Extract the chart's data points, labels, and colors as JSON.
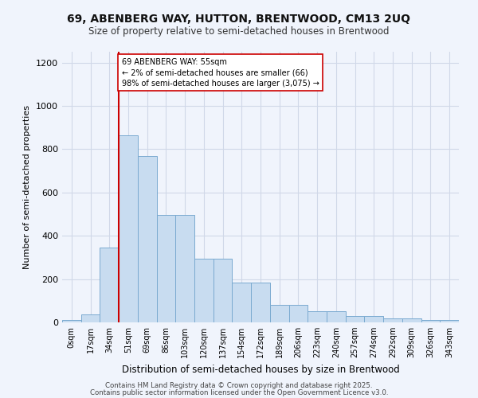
{
  "title": "69, ABENBERG WAY, HUTTON, BRENTWOOD, CM13 2UQ",
  "subtitle": "Size of property relative to semi-detached houses in Brentwood",
  "xlabel": "Distribution of semi-detached houses by size in Brentwood",
  "ylabel": "Number of semi-detached properties",
  "bar_labels": [
    "0sqm",
    "17sqm",
    "34sqm",
    "51sqm",
    "69sqm",
    "86sqm",
    "103sqm",
    "120sqm",
    "137sqm",
    "154sqm",
    "172sqm",
    "189sqm",
    "206sqm",
    "223sqm",
    "240sqm",
    "257sqm",
    "274sqm",
    "292sqm",
    "309sqm",
    "326sqm",
    "343sqm"
  ],
  "bar_values": [
    10,
    35,
    345,
    865,
    770,
    495,
    495,
    295,
    295,
    185,
    185,
    80,
    80,
    50,
    50,
    30,
    30,
    20,
    20,
    10,
    10
  ],
  "bar_color": "#c8dcf0",
  "bar_edge_color": "#7aaad0",
  "grid_color": "#d0d8e8",
  "background_color": "#f0f4fc",
  "vline_color": "#cc0000",
  "vline_x_index": 3,
  "annotation_text": "69 ABENBERG WAY: 55sqm\n← 2% of semi-detached houses are smaller (66)\n98% of semi-detached houses are larger (3,075) →",
  "annotation_box_color": "white",
  "annotation_box_edge": "#cc0000",
  "ylim": [
    0,
    1250
  ],
  "yticks": [
    0,
    200,
    400,
    600,
    800,
    1000,
    1200
  ],
  "footer1": "Contains HM Land Registry data © Crown copyright and database right 2025.",
  "footer2": "Contains public sector information licensed under the Open Government Licence v3.0."
}
